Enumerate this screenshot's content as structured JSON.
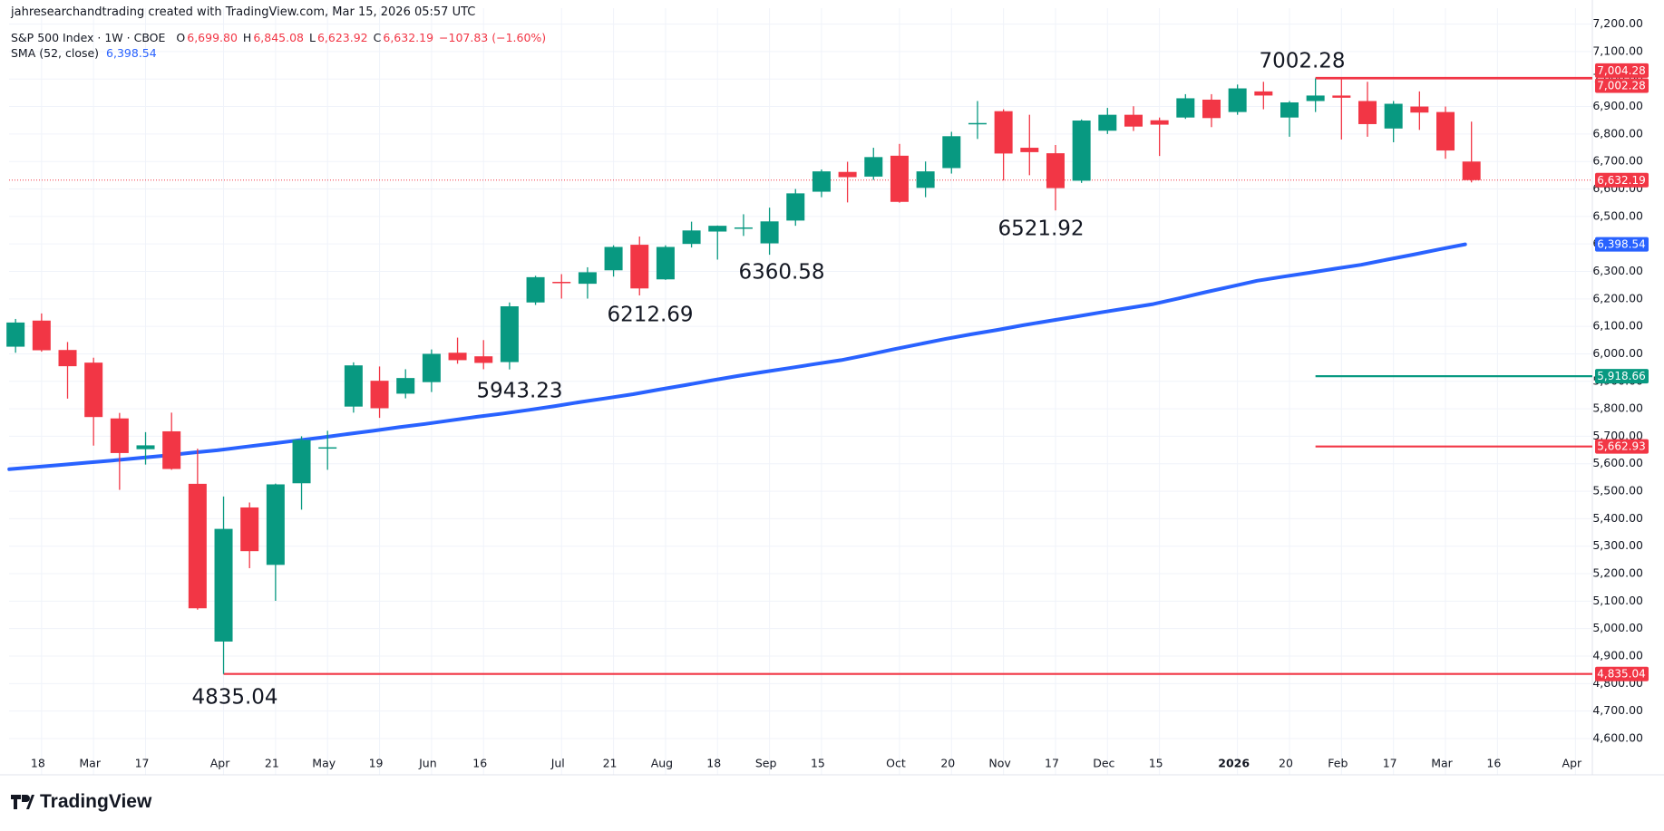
{
  "header": {
    "attribution": "jahresearchandtrading created with TradingView.com, Mar 15, 2026 05:57 UTC",
    "logo": "TradingView"
  },
  "chart_data": {
    "type": "candlestick",
    "title": "S&P 500 Index · 1W · CBOE",
    "ohlc_legend": [
      {
        "key": "O",
        "value": "6,699.80"
      },
      {
        "key": "H",
        "value": "6,845.08"
      },
      {
        "key": "L",
        "value": "6,623.92"
      },
      {
        "key": "C",
        "value": "6,632.19"
      }
    ],
    "change": "−107.83 (−1.60%)",
    "up_color": "#089981",
    "down_color": "#f23645",
    "open": [
      6026,
      6121,
      6014,
      5968,
      5765,
      5653,
      5718,
      5527,
      4953,
      5441,
      5232,
      5529,
      5655,
      5808,
      5902,
      5855,
      5897,
      6004,
      5991,
      5970,
      6187,
      6262,
      6255,
      6304,
      6397,
      6271,
      6400,
      6445,
      6457,
      6402,
      6485,
      6590,
      6662,
      6645,
      6721,
      6604,
      6676,
      6838,
      6883,
      6750,
      6730,
      6630,
      6812,
      6870,
      6850,
      6860,
      6925,
      6880,
      6955,
      6860,
      6920,
      6940,
      6920,
      6820,
      6900,
      6880,
      6699.8
    ],
    "high": [
      6127,
      6147,
      6043,
      5986,
      5785,
      5715,
      5786,
      5655,
      5481,
      5459,
      5528,
      5700,
      5720,
      5969,
      5954,
      5944,
      6016,
      6059,
      6050,
      6187,
      6284,
      6290,
      6315,
      6395,
      6427,
      6395,
      6481,
      6467,
      6508,
      6532,
      6600,
      6671,
      6699,
      6750,
      6764,
      6700,
      6808,
      6920,
      6890,
      6870,
      6760,
      6853,
      6895,
      6901,
      6860,
      6945,
      6945,
      6980,
      6990,
      6920,
      7002.28,
      7000,
      6990,
      6920,
      6955,
      6900,
      6845.08
    ],
    "low": [
      6004,
      6008,
      5837,
      5666,
      5505,
      5597,
      5578,
      5069,
      4835.04,
      5220,
      5101,
      5433,
      5578,
      5786,
      5767,
      5838,
      5861,
      5964,
      5944,
      5943.23,
      6178,
      6201,
      6201,
      6281,
      6212.69,
      6269,
      6387,
      6343,
      6429,
      6360.58,
      6466,
      6570,
      6551,
      6633,
      6550,
      6570,
      6656,
      6782,
      6631,
      6650,
      6521.92,
      6622,
      6800,
      6811,
      6720,
      6855,
      6825,
      6870,
      6890,
      6790,
      6880,
      6780,
      6790,
      6770,
      6815,
      6710,
      6623.92
    ],
    "close": [
      6114,
      6013,
      5955,
      5770,
      5639,
      5667,
      5581,
      5074,
      5363,
      5282,
      5525,
      5687,
      5660,
      5958,
      5802,
      5912,
      6000,
      5977,
      5967,
      6173,
      6279,
      6259,
      6297,
      6389,
      6238,
      6389,
      6449,
      6466,
      6460,
      6482,
      6584,
      6664,
      6643,
      6716,
      6553,
      6664,
      6792,
      6840,
      6729,
      6734,
      6603,
      6849,
      6870,
      6827,
      6834,
      6930,
      6858,
      6966,
      6940,
      6915,
      6940,
      6932,
      6836,
      6910,
      6878,
      6740,
      6632.19
    ],
    "indicator": {
      "name": "SMA (52, close)",
      "color": "#2962ff",
      "last_label": "6,398.54",
      "values": [
        5580,
        5588,
        5596,
        5604,
        5612,
        5621,
        5630,
        5640,
        5649,
        5661,
        5672,
        5684,
        5695,
        5708,
        5720,
        5733,
        5745,
        5758,
        5771,
        5783,
        5796,
        5810,
        5825,
        5839,
        5853,
        5870,
        5886,
        5903,
        5919,
        5934,
        5948,
        5963,
        5977,
        5996,
        6016,
        6035,
        6054,
        6071,
        6087,
        6104,
        6120,
        6135,
        6151,
        6166,
        6181,
        6202,
        6224,
        6245,
        6266,
        6281,
        6295,
        6310,
        6324,
        6343,
        6361,
        6380,
        6398.54
      ]
    },
    "levels": [
      {
        "value": 7004.28,
        "label": "7,004.28",
        "color": "#f23645"
      },
      {
        "value": 7002.28,
        "label": "7,002.28",
        "color": "#f23645"
      },
      {
        "value": 6632.19,
        "label": "6,632.19",
        "color": "#f23645",
        "style": "dotted"
      },
      {
        "value": 5918.66,
        "label": "5,918.66",
        "color": "#089981"
      },
      {
        "value": 5662.93,
        "label": "5,662.93",
        "color": "#f23645"
      },
      {
        "value": 4835.04,
        "label": "4,835.04",
        "color": "#f23645"
      }
    ],
    "annotations": [
      "7002.28",
      "4835.04",
      "5943.23",
      "6212.69",
      "6360.58",
      "6521.92"
    ],
    "xlim": [
      -0.25,
      60.65
    ],
    "xticks": [
      {
        "value": 1,
        "label": "18"
      },
      {
        "value": 3,
        "label": "Mar"
      },
      {
        "value": 5,
        "label": "17"
      },
      {
        "value": 8,
        "label": "Apr"
      },
      {
        "value": 10,
        "label": "21"
      },
      {
        "value": 12,
        "label": "May"
      },
      {
        "value": 14,
        "label": "19"
      },
      {
        "value": 16,
        "label": "Jun"
      },
      {
        "value": 18,
        "label": "16"
      },
      {
        "value": 21,
        "label": "Jul"
      },
      {
        "value": 23,
        "label": "21"
      },
      {
        "value": 25,
        "label": "Aug"
      },
      {
        "value": 27,
        "label": "18"
      },
      {
        "value": 29,
        "label": "Sep"
      },
      {
        "value": 31,
        "label": "15"
      },
      {
        "value": 34,
        "label": "Oct"
      },
      {
        "value": 36,
        "label": "20"
      },
      {
        "value": 38,
        "label": "Nov"
      },
      {
        "value": 40,
        "label": "17"
      },
      {
        "value": 42,
        "label": "Dec"
      },
      {
        "value": 44,
        "label": "15"
      },
      {
        "value": 47,
        "label": "2026"
      },
      {
        "value": 49,
        "label": "20"
      },
      {
        "value": 51,
        "label": "Feb"
      },
      {
        "value": 53,
        "label": "17"
      },
      {
        "value": 55,
        "label": "Mar"
      },
      {
        "value": 57,
        "label": "16"
      },
      {
        "value": 60,
        "label": "Apr"
      }
    ],
    "ylim": [
      4468,
      7258
    ],
    "yticks": [
      {
        "value": 4600,
        "label": "4,600.00"
      },
      {
        "value": 4700,
        "label": "4,700.00"
      },
      {
        "value": 4800,
        "label": "4,800.00"
      },
      {
        "value": 4900,
        "label": "4,900.00"
      },
      {
        "value": 5000,
        "label": "5,000.00"
      },
      {
        "value": 5100,
        "label": "5,100.00"
      },
      {
        "value": 5200,
        "label": "5,200.00"
      },
      {
        "value": 5300,
        "label": "5,300.00"
      },
      {
        "value": 5400,
        "label": "5,400.00"
      },
      {
        "value": 5500,
        "label": "5,500.00"
      },
      {
        "value": 5600,
        "label": "5,600.00"
      },
      {
        "value": 5700,
        "label": "5,700.00"
      },
      {
        "value": 5800,
        "label": "5,800.00"
      },
      {
        "value": 5900,
        "label": "5,900.00"
      },
      {
        "value": 6000,
        "label": "6,000.00"
      },
      {
        "value": 6100,
        "label": "6,100.00"
      },
      {
        "value": 6200,
        "label": "6,200.00"
      },
      {
        "value": 6300,
        "label": "6,300.00"
      },
      {
        "value": 6400,
        "label": "6,400.00"
      },
      {
        "value": 6500,
        "label": "6,500.00"
      },
      {
        "value": 6600,
        "label": "6,600.00"
      },
      {
        "value": 6700,
        "label": "6,700.00"
      },
      {
        "value": 6800,
        "label": "6,800.00"
      },
      {
        "value": 6900,
        "label": "6,900.00"
      },
      {
        "value": 7000,
        "label": "7,000.00"
      },
      {
        "value": 7100,
        "label": "7,100.00"
      },
      {
        "value": 7200,
        "label": "7,200.00"
      }
    ],
    "grid": true
  }
}
